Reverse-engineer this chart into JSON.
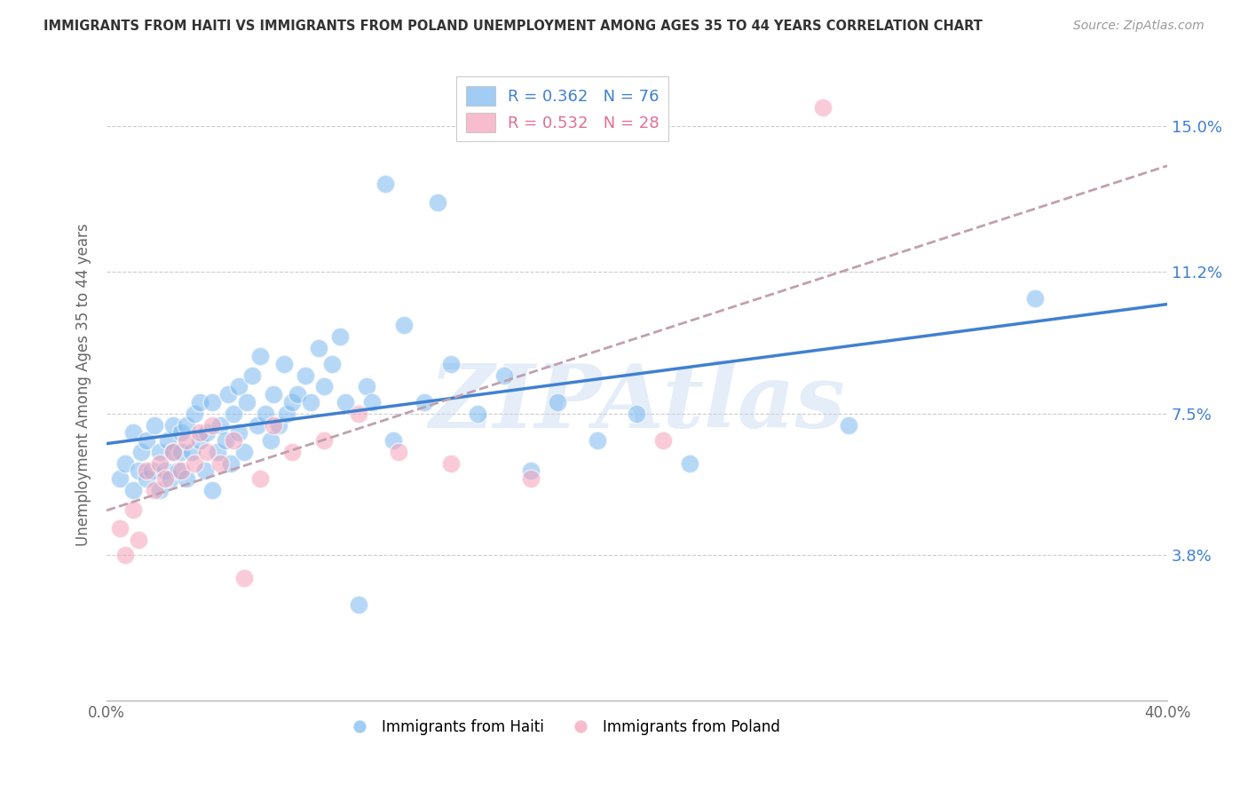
{
  "title": "IMMIGRANTS FROM HAITI VS IMMIGRANTS FROM POLAND UNEMPLOYMENT AMONG AGES 35 TO 44 YEARS CORRELATION CHART",
  "source": "Source: ZipAtlas.com",
  "ylabel": "Unemployment Among Ages 35 to 44 years",
  "watermark": "ZIPAtlas",
  "xlim": [
    0.0,
    0.4
  ],
  "ylim": [
    0.0,
    0.165
  ],
  "yticks": [
    0.038,
    0.075,
    0.112,
    0.15
  ],
  "ytick_labels": [
    "3.8%",
    "7.5%",
    "11.2%",
    "15.0%"
  ],
  "legend_haiti_R": "R = 0.362",
  "legend_haiti_N": "N = 76",
  "legend_poland_R": "R = 0.532",
  "legend_poland_N": "N = 28",
  "color_haiti": "#7ab8f0",
  "color_poland": "#f5a0b8",
  "color_haiti_line": "#4080d0",
  "color_poland_line": "#c0a0b0",
  "background_color": "#ffffff",
  "haiti_x": [
    0.005,
    0.007,
    0.01,
    0.01,
    0.012,
    0.013,
    0.015,
    0.015,
    0.017,
    0.018,
    0.02,
    0.02,
    0.022,
    0.023,
    0.024,
    0.025,
    0.025,
    0.027,
    0.028,
    0.028,
    0.03,
    0.03,
    0.032,
    0.033,
    0.035,
    0.035,
    0.037,
    0.038,
    0.04,
    0.04,
    0.042,
    0.043,
    0.045,
    0.046,
    0.047,
    0.048,
    0.05,
    0.05,
    0.052,
    0.053,
    0.055,
    0.057,
    0.058,
    0.06,
    0.062,
    0.063,
    0.065,
    0.067,
    0.068,
    0.07,
    0.072,
    0.075,
    0.077,
    0.08,
    0.082,
    0.085,
    0.088,
    0.09,
    0.095,
    0.098,
    0.1,
    0.105,
    0.108,
    0.112,
    0.12,
    0.125,
    0.13,
    0.14,
    0.15,
    0.16,
    0.17,
    0.185,
    0.2,
    0.22,
    0.28,
    0.35
  ],
  "haiti_y": [
    0.058,
    0.062,
    0.055,
    0.07,
    0.06,
    0.065,
    0.058,
    0.068,
    0.06,
    0.072,
    0.055,
    0.065,
    0.06,
    0.068,
    0.058,
    0.065,
    0.072,
    0.06,
    0.065,
    0.07,
    0.058,
    0.072,
    0.065,
    0.075,
    0.068,
    0.078,
    0.06,
    0.07,
    0.055,
    0.078,
    0.065,
    0.072,
    0.068,
    0.08,
    0.062,
    0.075,
    0.07,
    0.082,
    0.065,
    0.078,
    0.085,
    0.072,
    0.09,
    0.075,
    0.068,
    0.08,
    0.072,
    0.088,
    0.075,
    0.078,
    0.08,
    0.085,
    0.078,
    0.092,
    0.082,
    0.088,
    0.095,
    0.078,
    0.025,
    0.082,
    0.078,
    0.135,
    0.068,
    0.098,
    0.078,
    0.13,
    0.088,
    0.075,
    0.085,
    0.06,
    0.078,
    0.068,
    0.075,
    0.062,
    0.072,
    0.105
  ],
  "poland_x": [
    0.005,
    0.007,
    0.01,
    0.012,
    0.015,
    0.018,
    0.02,
    0.022,
    0.025,
    0.028,
    0.03,
    0.033,
    0.035,
    0.038,
    0.04,
    0.043,
    0.048,
    0.052,
    0.058,
    0.063,
    0.07,
    0.082,
    0.095,
    0.11,
    0.13,
    0.16,
    0.21,
    0.27
  ],
  "poland_y": [
    0.045,
    0.038,
    0.05,
    0.042,
    0.06,
    0.055,
    0.062,
    0.058,
    0.065,
    0.06,
    0.068,
    0.062,
    0.07,
    0.065,
    0.072,
    0.062,
    0.068,
    0.032,
    0.058,
    0.072,
    0.065,
    0.068,
    0.075,
    0.065,
    0.062,
    0.058,
    0.068,
    0.155
  ]
}
